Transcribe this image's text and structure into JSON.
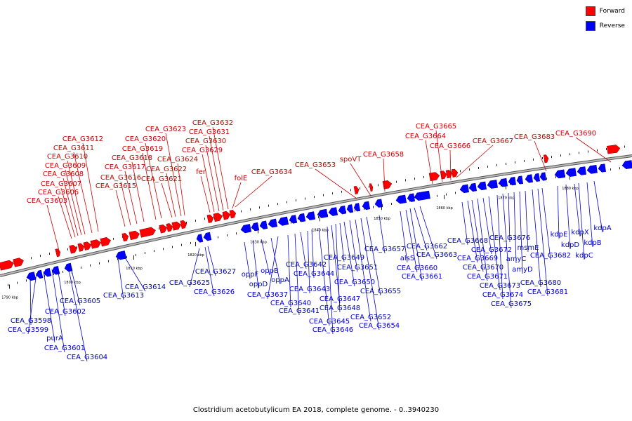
{
  "legend": [
    {
      "label": "Forward",
      "color": "#ff0000"
    },
    {
      "label": "Reverse",
      "color": "#0000ff"
    }
  ],
  "caption": "Clostridium acetobutylicum EA 2018, complete genome. - 0..3940230",
  "scale_labels": [
    "1790 kbp",
    "1800 kbp",
    "1810 kbp",
    "1820 kbp",
    "1830 kbp",
    "1840 kbp",
    "1850 kbp",
    "1860 kbp",
    "1870 kbp",
    "1880 kbp"
  ],
  "forward_genes": [
    "CEA_G3603",
    "CEA_G3606",
    "CEA_G3607",
    "CEA_G3608",
    "CEA_G3609",
    "CEA_G3610",
    "CEA_G3611",
    "CEA_G3612",
    "CEA_G3615",
    "CEA_G3616",
    "CEA_G3617",
    "CEA_G3618",
    "CEA_G3619",
    "CEA_G3620",
    "CEA_G3621",
    "CEA_G3622",
    "CEA_G3623",
    "CEA_G3624",
    "fer",
    "CEA_G3629",
    "CEA_G3630",
    "CEA_G3631",
    "CEA_G3632",
    "folE",
    "CEA_G3634",
    "CEA_G3653",
    "spoVT",
    "CEA_G3658",
    "CEA_G3664",
    "CEA_G3665",
    "CEA_G3666",
    "CEA_G3667",
    "CEA_G3683",
    "CEA_G3690"
  ],
  "reverse_genes": [
    "CEA_G3598",
    "CEA_G3599",
    "purA",
    "CEA_G3601",
    "CEA_G3602",
    "CEA_G3604",
    "CEA_G3605",
    "CEA_G3613",
    "CEA_G3614",
    "CEA_G3625",
    "CEA_G3626",
    "CEA_G3627",
    "oppF",
    "oppD",
    "oppB",
    "oppA",
    "CEA_G3637",
    "CEA_G3640",
    "CEA_G3641",
    "CEA_G3642",
    "CEA_G3643",
    "CEA_G3644",
    "CEA_G3645",
    "CEA_G3646",
    "CEA_G3647",
    "CEA_G3648",
    "CEA_G3649",
    "CEA_G3650",
    "CEA_G3651",
    "CEA_G3652",
    "CEA_G3654",
    "CEA_G3655",
    "CEA_G3657",
    "alsS",
    "CEA_G3660",
    "CEA_G3661",
    "CEA_G3662",
    "CEA_G3663",
    "CEA_G3668",
    "CEA_G3669",
    "CEA_G3670",
    "CEA_G3671",
    "CEA_G3672",
    "CEA_G3673",
    "CEA_G3674",
    "CEA_G3675",
    "CEA_G3676",
    "amyC",
    "amyD",
    "msmE",
    "CEA_G3680",
    "CEA_G3681",
    "CEA_G3682",
    "kdpE",
    "kdpD",
    "kdpX",
    "kdpC",
    "kdpB",
    "kdpA"
  ],
  "colors": {
    "forward": "#ff0000",
    "forward_stroke": "#990000",
    "reverse": "#0000ff",
    "reverse_stroke": "#000099",
    "backbone": "#888888"
  }
}
